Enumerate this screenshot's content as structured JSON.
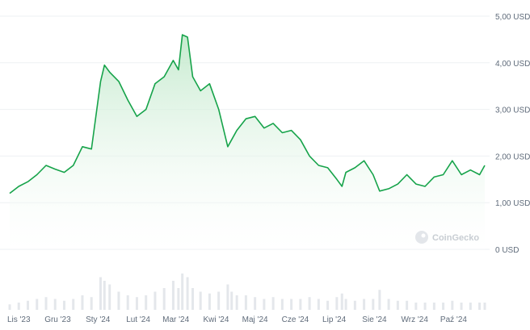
{
  "watermark": {
    "text": "CoinGecko"
  },
  "colors": {
    "line": "#16a34a",
    "area_top": "#bfe8c9",
    "area_bottom": "#ffffff",
    "volume": "#e4e7eb",
    "grid": "#eef0f3",
    "tick_text": "#5f6b7a"
  },
  "chart_data": {
    "type": "area",
    "currency": "USD",
    "ylim": [
      0,
      5
    ],
    "y_ticks": [
      0,
      1,
      2,
      3,
      4,
      5
    ],
    "y_tick_labels": [
      "0 USD",
      "1,00 USD",
      "2,00 USD",
      "3,00 USD",
      "4,00 USD",
      "5,00 USD"
    ],
    "x_tick_labels": [
      "Lis '23",
      "Gru '23",
      "Sty '24",
      "Lut '24",
      "Mar '24",
      "Kwi '24",
      "Maj '24",
      "Cze '24",
      "Lip '24",
      "Sie '24",
      "Wrz '24",
      "Paź '24"
    ],
    "x": [
      "2023-10-25",
      "2023-11-01",
      "2023-11-08",
      "2023-11-15",
      "2023-11-22",
      "2023-11-29",
      "2023-12-06",
      "2023-12-13",
      "2023-12-20",
      "2023-12-27",
      "2024-01-03",
      "2024-01-06",
      "2024-01-10",
      "2024-01-17",
      "2024-01-24",
      "2024-01-31",
      "2024-02-07",
      "2024-02-14",
      "2024-02-21",
      "2024-02-28",
      "2024-03-03",
      "2024-03-06",
      "2024-03-10",
      "2024-03-14",
      "2024-03-20",
      "2024-03-27",
      "2024-04-03",
      "2024-04-10",
      "2024-04-13",
      "2024-04-17",
      "2024-04-24",
      "2024-05-01",
      "2024-05-08",
      "2024-05-15",
      "2024-05-22",
      "2024-05-29",
      "2024-06-05",
      "2024-06-12",
      "2024-06-19",
      "2024-06-26",
      "2024-07-03",
      "2024-07-07",
      "2024-07-10",
      "2024-07-17",
      "2024-07-24",
      "2024-07-31",
      "2024-08-05",
      "2024-08-12",
      "2024-08-19",
      "2024-08-26",
      "2024-09-02",
      "2024-09-09",
      "2024-09-16",
      "2024-09-23",
      "2024-09-30",
      "2024-10-07",
      "2024-10-14",
      "2024-10-21",
      "2024-10-25"
    ],
    "values": [
      1.2,
      1.35,
      1.45,
      1.6,
      1.8,
      1.72,
      1.65,
      1.8,
      2.2,
      2.15,
      3.6,
      3.95,
      3.8,
      3.6,
      3.2,
      2.85,
      3.0,
      3.55,
      3.7,
      4.05,
      3.85,
      4.6,
      4.55,
      3.7,
      3.4,
      3.55,
      3.0,
      2.2,
      2.35,
      2.55,
      2.8,
      2.85,
      2.6,
      2.7,
      2.5,
      2.55,
      2.35,
      2.0,
      1.8,
      1.75,
      1.5,
      1.35,
      1.65,
      1.75,
      1.9,
      1.6,
      1.25,
      1.3,
      1.4,
      1.6,
      1.4,
      1.35,
      1.55,
      1.6,
      1.9,
      1.6,
      1.7,
      1.6,
      1.8
    ],
    "volume": [
      0.15,
      0.2,
      0.25,
      0.3,
      0.35,
      0.3,
      0.25,
      0.3,
      0.4,
      0.35,
      0.9,
      0.8,
      0.7,
      0.5,
      0.4,
      0.35,
      0.4,
      0.5,
      0.6,
      0.8,
      0.6,
      1.0,
      0.9,
      0.6,
      0.5,
      0.45,
      0.5,
      0.7,
      0.5,
      0.4,
      0.4,
      0.35,
      0.3,
      0.35,
      0.3,
      0.3,
      0.3,
      0.35,
      0.3,
      0.25,
      0.35,
      0.45,
      0.3,
      0.25,
      0.3,
      0.3,
      0.55,
      0.3,
      0.25,
      0.25,
      0.2,
      0.2,
      0.2,
      0.2,
      0.25,
      0.2,
      0.2,
      0.2,
      0.2
    ]
  }
}
